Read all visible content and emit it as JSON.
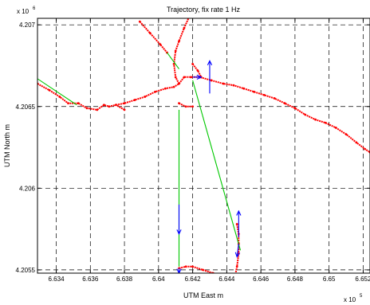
{
  "chart_data": {
    "type": "line",
    "title": "Trajectory, fix rate 1 Hz",
    "xlabel": "UTM East m",
    "ylabel": "UTM North m",
    "x_exponent_label": "x 10",
    "x_exponent": "5",
    "y_exponent_label": "x 10",
    "y_exponent": "6",
    "xlim": [
      6.6329,
      6.6524
    ],
    "ylim": [
      4.20548,
      4.20704
    ],
    "x_ticks": [
      6.634,
      6.636,
      6.638,
      6.64,
      6.642,
      6.644,
      6.646,
      6.648,
      6.65,
      6.652
    ],
    "x_tick_labels": [
      "6.634",
      "6.636",
      "6.638",
      "6.64",
      "6.642",
      "6.644",
      "6.646",
      "6.648",
      "6.65",
      "6.652"
    ],
    "y_ticks": [
      4.2055,
      4.206,
      4.2065,
      4.207
    ],
    "y_tick_labels": [
      "4.2055",
      "4.206",
      "4.2065",
      "4.207"
    ],
    "grid": true,
    "series": [
      {
        "color": "#ff0000",
        "style": "dotted-markers",
        "segments": [
          [
            [
              6.6329,
              4.20664
            ],
            [
              6.6336,
              4.2066
            ],
            [
              6.6342,
              4.20656
            ],
            [
              6.6347,
              4.20652
            ],
            [
              6.6353,
              4.20652
            ],
            [
              6.6358,
              4.20649
            ],
            [
              6.6364,
              4.20648
            ],
            [
              6.6368,
              4.20651
            ],
            [
              6.6371,
              4.2065
            ],
            [
              6.6375,
              4.20651
            ],
            [
              6.638,
              4.20648
            ]
          ],
          [
            [
              6.6375,
              4.20651
            ],
            [
              6.638,
              4.20652
            ],
            [
              6.6386,
              4.20654
            ],
            [
              6.6392,
              4.20656
            ],
            [
              6.6398,
              4.20659
            ],
            [
              6.6404,
              4.20661
            ],
            [
              6.6409,
              4.20662
            ],
            [
              6.6412,
              4.20664
            ],
            [
              6.6415,
              4.20668
            ],
            [
              6.6419,
              4.20668
            ],
            [
              6.6424,
              4.20668
            ],
            [
              6.6431,
              4.20666
            ],
            [
              6.6438,
              4.20664
            ],
            [
              6.6444,
              4.20663
            ],
            [
              6.645,
              4.20661
            ],
            [
              6.6456,
              4.20659
            ],
            [
              6.6462,
              4.20657
            ],
            [
              6.6468,
              4.20655
            ],
            [
              6.6474,
              4.20652
            ],
            [
              6.648,
              4.20649
            ],
            [
              6.6486,
              4.20645
            ],
            [
              6.6492,
              4.20642
            ],
            [
              6.6498,
              4.2064
            ],
            [
              6.6504,
              4.20637
            ],
            [
              6.651,
              4.20633
            ],
            [
              6.6516,
              4.20628
            ],
            [
              6.6521,
              4.20624
            ],
            [
              6.6524,
              4.20622
            ]
          ],
          [
            [
              6.6389,
              4.20702
            ],
            [
              6.6395,
              4.20695
            ],
            [
              6.6401,
              4.20688
            ],
            [
              6.6405,
              4.20683
            ]
          ],
          [
            [
              6.6418,
              4.20705
            ],
            [
              6.6415,
              4.20698
            ],
            [
              6.6412,
              4.2069
            ],
            [
              6.641,
              4.20684
            ],
            [
              6.6409,
              4.20676
            ],
            [
              6.641,
              4.20668
            ],
            [
              6.6412,
              4.20664
            ]
          ],
          [
            [
              6.642,
              4.20676
            ],
            [
              6.6423,
              4.20672
            ],
            [
              6.6425,
              4.20668
            ]
          ],
          [
            [
              6.6412,
              4.20652
            ],
            [
              6.6416,
              4.2065
            ],
            [
              6.642,
              4.2065
            ]
          ],
          [
            [
              6.6412,
              4.20551
            ],
            [
              6.6416,
              4.20552
            ],
            [
              6.642,
              4.20552
            ],
            [
              6.6426,
              4.2055
            ],
            [
              6.6432,
              4.20548
            ],
            [
              6.6438,
              4.20546
            ],
            [
              6.6442,
              4.20545
            ],
            [
              6.6445,
              4.20547
            ]
          ],
          [
            [
              6.6446,
              4.20578
            ],
            [
              6.6447,
              4.20572
            ],
            [
              6.6447,
              4.20566
            ],
            [
              6.6447,
              4.2056
            ],
            [
              6.6446,
              4.20552
            ],
            [
              6.6445,
              4.20547
            ]
          ]
        ]
      },
      {
        "color": "#00c800",
        "style": "solid",
        "segments": [
          [
            [
              6.6329,
              4.20667
            ],
            [
              6.6352,
              4.20651
            ]
          ],
          [
            [
              6.6405,
              4.20683
            ],
            [
              6.6412,
              4.20673
            ]
          ],
          [
            [
              6.642,
              4.20666
            ],
            [
              6.6448,
              4.20562
            ]
          ],
          [
            [
              6.6412,
              4.20648
            ],
            [
              6.6412,
              4.20552
            ]
          ]
        ]
      }
    ],
    "arrows": [
      {
        "color": "#0000ff",
        "from": [
          6.643,
          4.20658
        ],
        "to": [
          6.643,
          4.20678
        ]
      },
      {
        "color": "#0000ff",
        "from": [
          6.6412,
          4.2059
        ],
        "to": [
          6.6412,
          4.20572
        ]
      },
      {
        "color": "#0000ff",
        "from": [
          6.642,
          4.20668
        ],
        "to": [
          6.6425,
          4.20668
        ]
      },
      {
        "color": "#0000ff",
        "from": [
          6.6447,
          4.2057
        ],
        "to": [
          6.6447,
          4.20586
        ]
      },
      {
        "color": "#0000ff",
        "from": [
          6.6447,
          4.20566
        ],
        "to": [
          6.6446,
          4.20558
        ]
      },
      {
        "color": "#0000ff",
        "from": [
          6.6412,
          4.20551
        ],
        "to": [
          6.6412,
          4.20548
        ]
      }
    ]
  }
}
